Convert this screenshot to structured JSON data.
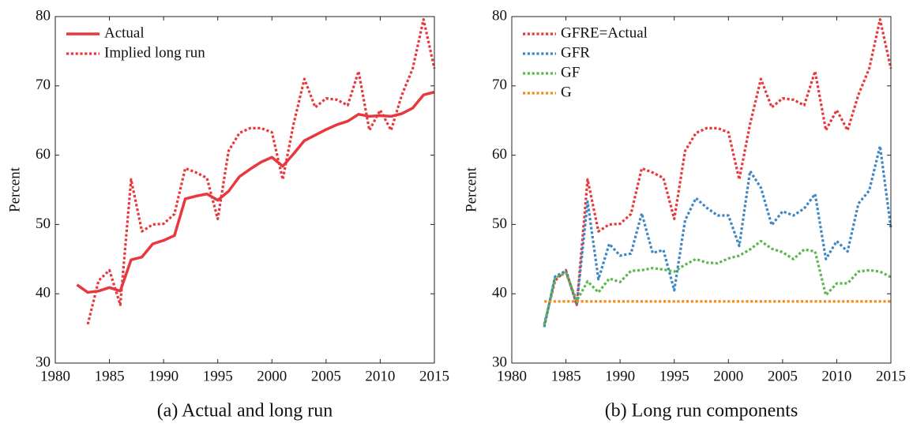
{
  "chart_data": [
    {
      "type": "line",
      "caption": "(a) Actual and long run",
      "ylabel": "Percent",
      "x": [
        1982,
        1983,
        1984,
        1985,
        1986,
        1987,
        1988,
        1989,
        1990,
        1991,
        1992,
        1993,
        1994,
        1995,
        1996,
        1997,
        1998,
        1999,
        2000,
        2001,
        2002,
        2003,
        2004,
        2005,
        2006,
        2007,
        2008,
        2009,
        2010,
        2011,
        2012,
        2013,
        2014,
        2015
      ],
      "xlim": [
        1980,
        2015
      ],
      "xticks": [
        1980,
        1985,
        1990,
        1995,
        2000,
        2005,
        2010,
        2015
      ],
      "ylim": [
        30,
        80
      ],
      "yticks": [
        30,
        40,
        50,
        60,
        70,
        80
      ],
      "legend": "upper left",
      "series": [
        {
          "name": "Actual",
          "color": "#e8383d",
          "linestyle": "solid",
          "values": [
            41.3,
            40.2,
            40.4,
            40.9,
            40.4,
            44.9,
            45.3,
            47.2,
            47.7,
            48.4,
            53.7,
            54.1,
            54.4,
            53.5,
            54.8,
            56.9,
            58.0,
            59.0,
            59.7,
            58.4,
            60.2,
            62.1,
            62.9,
            63.7,
            64.4,
            64.9,
            65.9,
            65.6,
            65.7,
            65.6,
            66.0,
            66.8,
            68.7,
            69.1
          ]
        },
        {
          "name": "Implied long run",
          "color": "#e8383d",
          "linestyle": "dotted",
          "values": [
            null,
            35.6,
            41.9,
            43.4,
            38.4,
            56.5,
            49.0,
            50.0,
            50.1,
            51.5,
            58.1,
            57.5,
            56.7,
            50.8,
            60.6,
            63.2,
            63.9,
            63.9,
            63.3,
            56.5,
            64.5,
            71.0,
            66.9,
            68.2,
            68.0,
            67.2,
            72.1,
            63.6,
            66.5,
            63.6,
            68.7,
            72.5,
            79.6,
            72.5
          ]
        }
      ]
    },
    {
      "type": "line",
      "caption": "(b) Long run components",
      "ylabel": "Percent",
      "x": [
        1983,
        1984,
        1985,
        1986,
        1987,
        1988,
        1989,
        1990,
        1991,
        1992,
        1993,
        1994,
        1995,
        1996,
        1997,
        1998,
        1999,
        2000,
        2001,
        2002,
        2003,
        2004,
        2005,
        2006,
        2007,
        2008,
        2009,
        2010,
        2011,
        2012,
        2013,
        2014,
        2015
      ],
      "xlim": [
        1980,
        2015
      ],
      "xticks": [
        1980,
        1985,
        1990,
        1995,
        2000,
        2005,
        2010,
        2015
      ],
      "ylim": [
        30,
        80
      ],
      "yticks": [
        30,
        40,
        50,
        60,
        70,
        80
      ],
      "legend": "upper left",
      "series": [
        {
          "name": "GFRE=Actual",
          "color": "#e8383d",
          "linestyle": "dotted",
          "values": [
            35.6,
            41.9,
            43.4,
            38.4,
            56.5,
            49.0,
            50.0,
            50.1,
            51.5,
            58.1,
            57.5,
            56.7,
            50.8,
            60.6,
            63.2,
            63.9,
            63.9,
            63.3,
            56.5,
            64.5,
            71.0,
            66.9,
            68.2,
            68.0,
            67.2,
            72.1,
            63.6,
            66.5,
            63.6,
            68.7,
            72.5,
            79.6,
            72.5
          ]
        },
        {
          "name": "GFR",
          "color": "#3f86c2",
          "linestyle": "dotted",
          "values": [
            35.2,
            42.5,
            43.3,
            38.4,
            53.3,
            42.1,
            47.2,
            45.5,
            45.8,
            51.6,
            45.9,
            46.3,
            40.5,
            50.6,
            53.8,
            52.4,
            51.3,
            51.3,
            46.9,
            57.7,
            55.3,
            49.9,
            51.9,
            51.3,
            52.3,
            54.4,
            45.0,
            47.6,
            46.1,
            53.0,
            54.9,
            61.3,
            49.5
          ]
        },
        {
          "name": "GF",
          "color": "#5ab84d",
          "linestyle": "dotted",
          "values": [
            35.5,
            42.3,
            43.0,
            39.0,
            41.8,
            40.2,
            42.2,
            41.7,
            43.3,
            43.4,
            43.7,
            43.5,
            43.2,
            44.2,
            45.0,
            44.5,
            44.4,
            45.1,
            45.5,
            46.4,
            47.6,
            46.5,
            46.0,
            45.0,
            46.4,
            46.1,
            39.8,
            41.5,
            41.5,
            43.2,
            43.4,
            43.2,
            42.4
          ]
        },
        {
          "name": "G",
          "color": "#f28c1e",
          "linestyle": "dotted",
          "values": [
            38.9,
            38.9,
            38.9,
            38.9,
            38.9,
            38.9,
            38.9,
            38.9,
            38.9,
            38.9,
            38.9,
            38.9,
            38.9,
            38.9,
            38.9,
            38.9,
            38.9,
            38.9,
            38.9,
            38.9,
            38.9,
            38.9,
            38.9,
            38.9,
            38.9,
            38.9,
            38.9,
            38.9,
            38.9,
            38.9,
            38.9,
            38.9,
            38.9
          ]
        }
      ]
    }
  ]
}
